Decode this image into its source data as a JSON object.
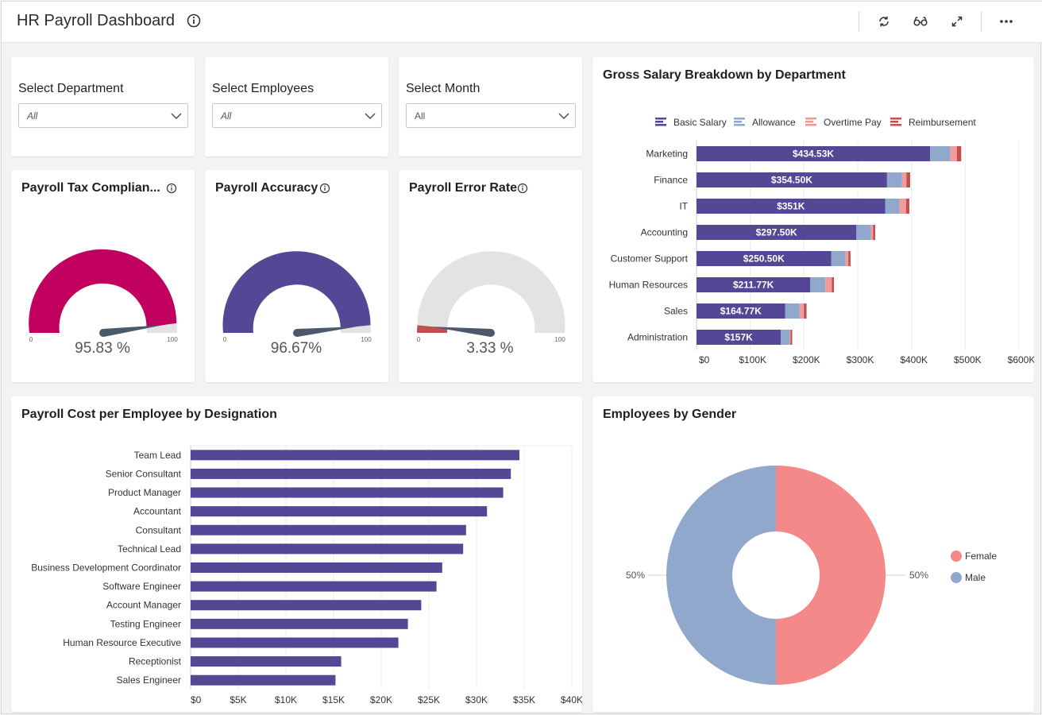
{
  "header": {
    "title": "HR Payroll Dashboard"
  },
  "icons": {
    "info": "info-icon",
    "refresh": "refresh-icon",
    "glasses": "glasses-icon",
    "expand": "expand-icon",
    "more": "more-icon",
    "chevron": "chevron-down-icon"
  },
  "filters": [
    {
      "label": "Select Department",
      "value": "All"
    },
    {
      "label": "Select Employees",
      "value": "All"
    },
    {
      "label": "Select Month",
      "value": "All"
    }
  ],
  "gauges": [
    {
      "title": "Payroll Tax Complian...",
      "value": 95.83,
      "display": "95.83 %",
      "min": "0",
      "max": "100",
      "color": "#c2005f"
    },
    {
      "title": "Payroll Accuracy",
      "value": 96.67,
      "display": "96.67%",
      "min": "0",
      "max": "100",
      "color": "#534796"
    },
    {
      "title": "Payroll Error Rate",
      "value": 3.33,
      "display": "3.33 %",
      "min": "0",
      "max": "100",
      "color": "#c0504d"
    }
  ],
  "gross_salary": {
    "title": "Gross Salary Breakdown by Department",
    "legend": [
      {
        "name": "Basic Salary",
        "color": "#534796"
      },
      {
        "name": "Allowance",
        "color": "#8fa8cc"
      },
      {
        "name": "Overtime Pay",
        "color": "#f39a9a"
      },
      {
        "name": "Reimbursement",
        "color": "#c0504d"
      }
    ],
    "x_ticks": [
      "$0",
      "$100K",
      "$200K",
      "$300K",
      "$400K",
      "$500K",
      "$600K"
    ]
  },
  "payroll_cost": {
    "title": "Payroll Cost per Employee by Designation",
    "x_ticks": [
      "$0",
      "$5K",
      "$10K",
      "$15K",
      "$20K",
      "$25K",
      "$30K",
      "$35K",
      "$40K"
    ]
  },
  "gender": {
    "title": "Employees by Gender",
    "legend": [
      {
        "name": "Female",
        "color": "#f4898a"
      },
      {
        "name": "Male",
        "color": "#8fa8cc"
      }
    ],
    "labels": [
      "50%",
      "50%"
    ]
  },
  "chart_data": [
    {
      "type": "bar",
      "orientation": "horizontal",
      "stacked": true,
      "title": "Gross Salary Breakdown by Department",
      "categories": [
        "Marketing",
        "Finance",
        "IT",
        "Accounting",
        "Customer Support",
        "Human Resources",
        "Sales",
        "Administration"
      ],
      "series": [
        {
          "name": "Basic Salary",
          "values": [
            434530,
            354500,
            351000,
            297500,
            250500,
            211770,
            164770,
            157000
          ],
          "labels": [
            "$434.53K",
            "$354.50K",
            "$351K",
            "$297.50K",
            "$250.50K",
            "$211.77K",
            "$164.77K",
            "$157K"
          ]
        },
        {
          "name": "Allowance",
          "values": [
            38000,
            28000,
            27000,
            27000,
            27000,
            28000,
            27000,
            16000
          ]
        },
        {
          "name": "Overtime Pay",
          "values": [
            12000,
            8000,
            12000,
            4000,
            5000,
            12000,
            8000,
            2000
          ]
        },
        {
          "name": "Reimbursement",
          "values": [
            8000,
            7000,
            6000,
            4000,
            4000,
            4000,
            5000,
            3000
          ]
        }
      ],
      "xlim": [
        0,
        600000
      ],
      "legend": "top"
    },
    {
      "type": "bar",
      "orientation": "horizontal",
      "title": "Payroll Cost per Employee by Designation",
      "categories": [
        "Team Lead",
        "Senior Consultant",
        "Product Manager",
        "Accountant",
        "Consultant",
        "Technical Lead",
        "Business Development Coordinator",
        "Software Engineer",
        "Account Manager",
        "Testing Engineer",
        "Human Resource Executive",
        "Receptionist",
        "Sales Engineer"
      ],
      "values": [
        34500,
        33600,
        32800,
        31100,
        28900,
        28600,
        26400,
        25800,
        24200,
        22800,
        21800,
        15800,
        15200
      ],
      "xlim": [
        0,
        40000
      ]
    },
    {
      "type": "pie",
      "donut": true,
      "title": "Employees by Gender",
      "categories": [
        "Female",
        "Male"
      ],
      "values": [
        50,
        50
      ],
      "legend": "right"
    }
  ]
}
